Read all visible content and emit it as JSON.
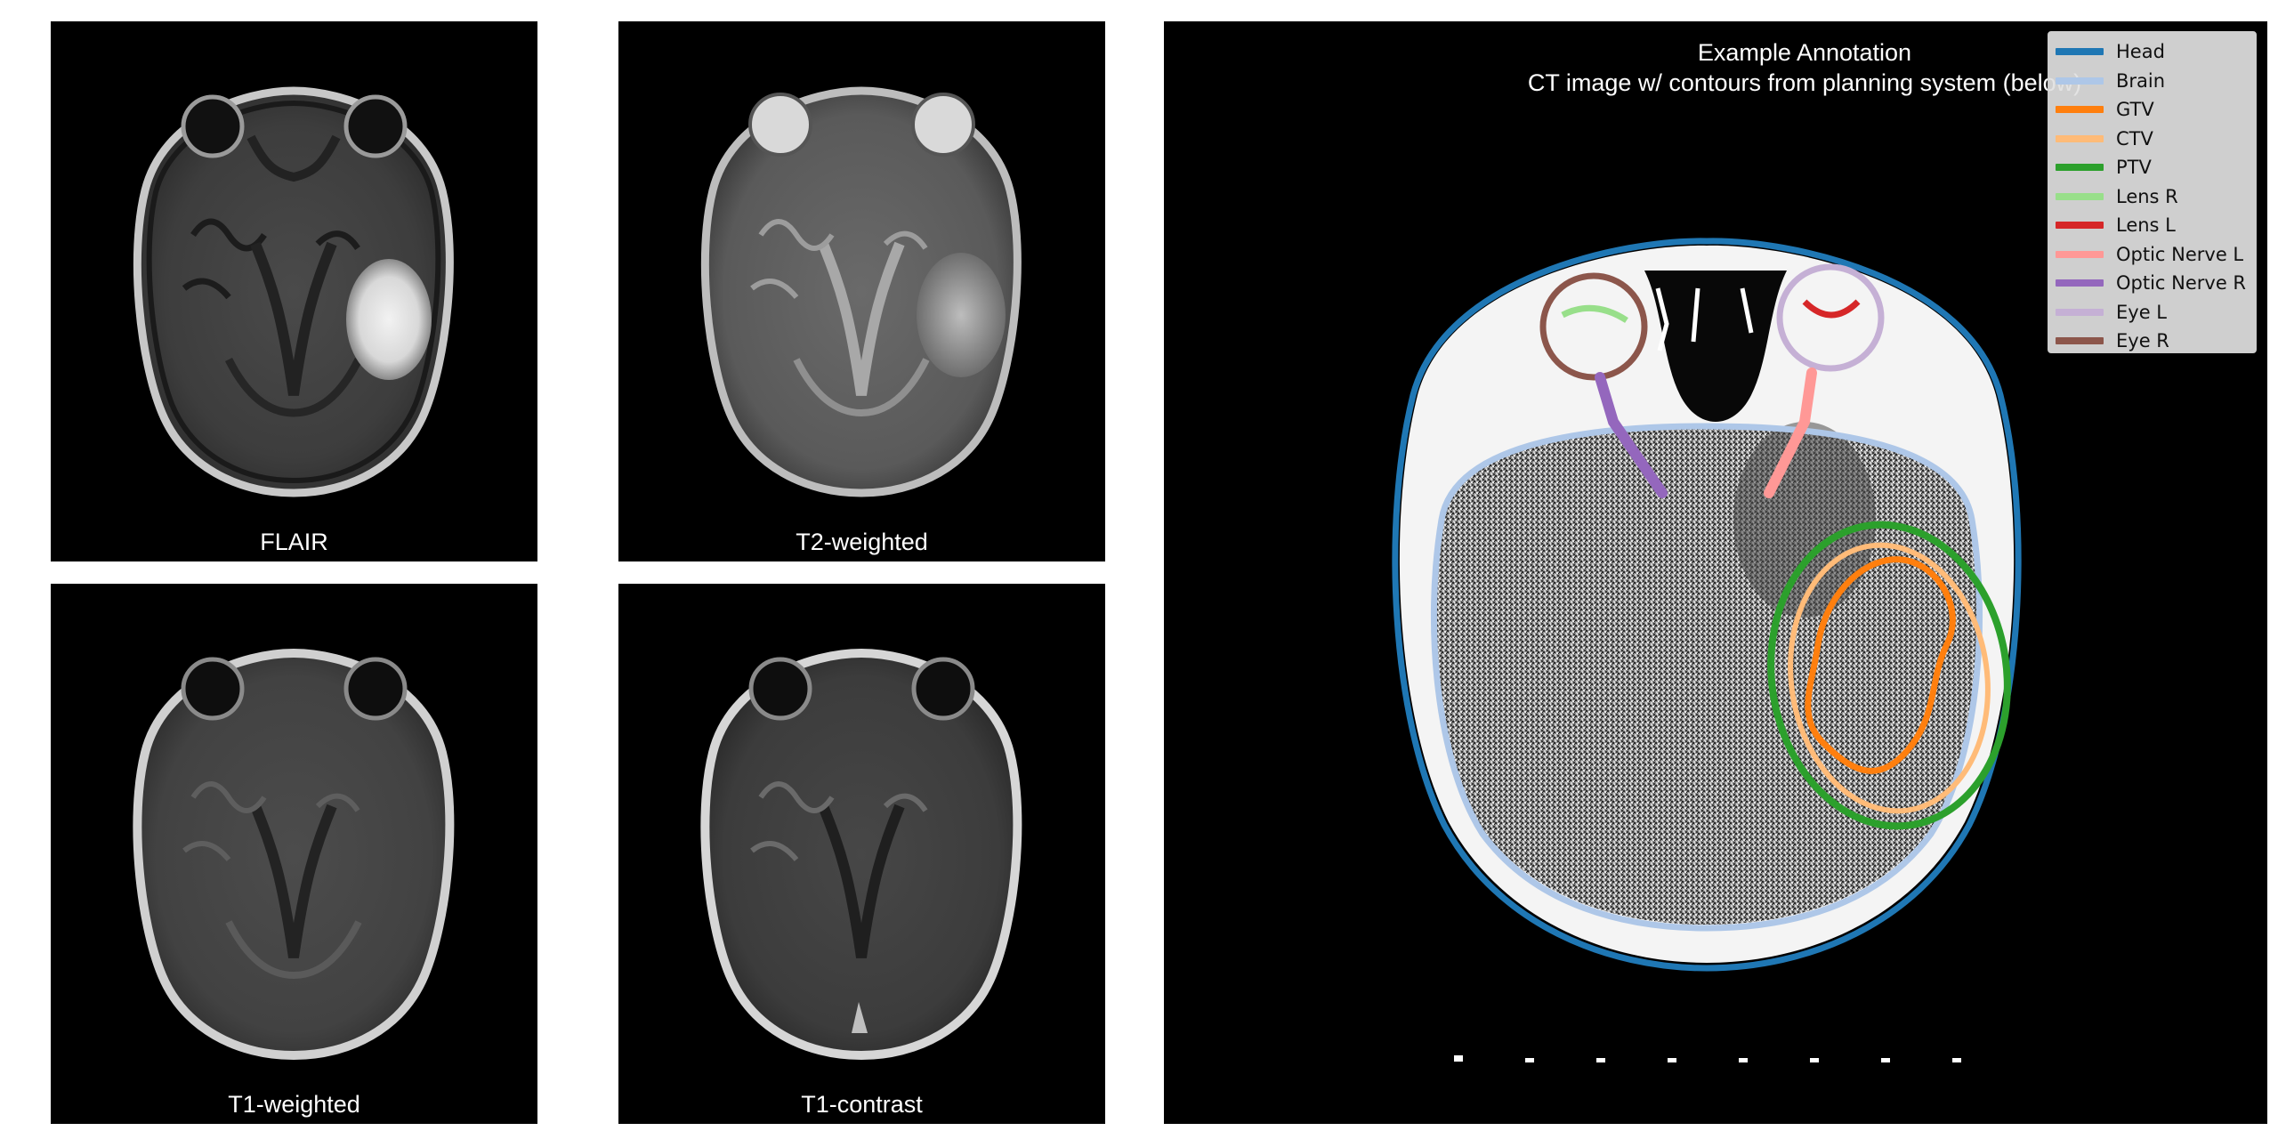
{
  "mri_panels": [
    {
      "id": "flair",
      "label": "FLAIR"
    },
    {
      "id": "t2",
      "label": "T2-weighted"
    },
    {
      "id": "t1",
      "label": "T1-weighted"
    },
    {
      "id": "t1c",
      "label": "T1-contrast"
    }
  ],
  "ct_panel": {
    "title_line1": "Example Annotation",
    "title_line2": "CT image w/ contours from planning system (below)"
  },
  "legend": {
    "items": [
      {
        "label": "Head",
        "color": "#1f77b4"
      },
      {
        "label": "Brain",
        "color": "#aec7e8"
      },
      {
        "label": "GTV",
        "color": "#ff7f0e"
      },
      {
        "label": "CTV",
        "color": "#ffbb78"
      },
      {
        "label": "PTV",
        "color": "#2ca02c"
      },
      {
        "label": "Lens R",
        "color": "#98df8a"
      },
      {
        "label": "Lens L",
        "color": "#d62728"
      },
      {
        "label": "Optic Nerve L",
        "color": "#ff9896"
      },
      {
        "label": "Optic Nerve R",
        "color": "#9467bd"
      },
      {
        "label": "Eye L",
        "color": "#c5b0d5"
      },
      {
        "label": "Eye R",
        "color": "#8c564b"
      }
    ]
  }
}
